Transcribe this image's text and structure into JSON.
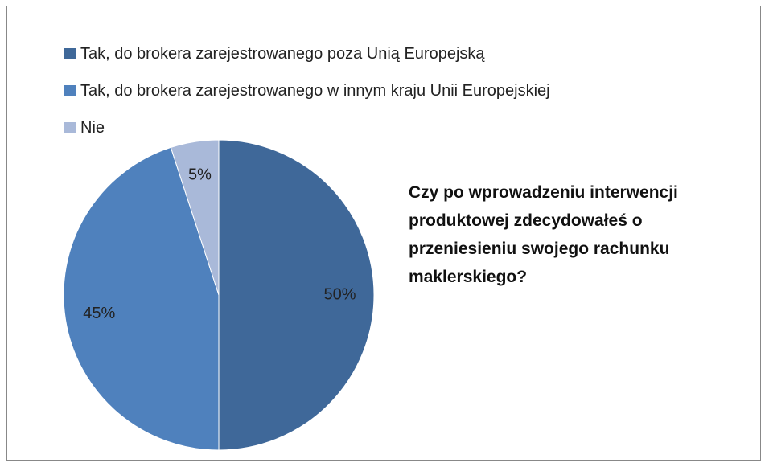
{
  "chart_data": {
    "type": "pie",
    "title": "Czy po wprowadzeniu interwencji produktowej zdecydowałeś o przeniesieniu swojego rachunku maklerskiego?",
    "categories": [
      "Tak, do brokera zarejestrowanego poza Unią Europejską",
      "Tak, do brokera zarejestrowanego w innym kraju Unii Europejskiej",
      "Nie"
    ],
    "values": [
      50,
      45,
      5
    ],
    "value_labels": [
      "50%",
      "45%",
      "5%"
    ],
    "colors": [
      "#3f6899",
      "#4f81bd",
      "#a9b9d9"
    ],
    "legend": "top-left"
  }
}
